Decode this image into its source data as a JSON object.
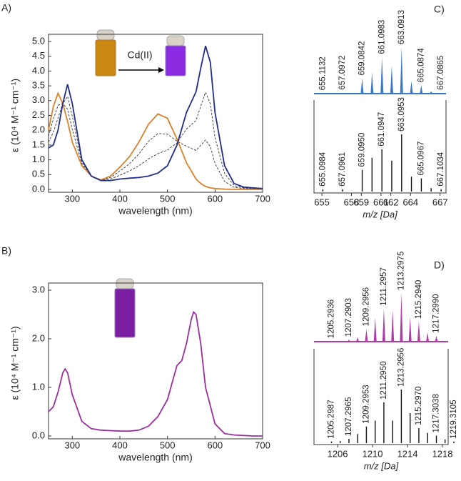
{
  "chart_data": [
    {
      "type": "line",
      "panel_label": "A)",
      "xlabel": "wavelength (nm)",
      "ylabel": "ε (10⁴ M⁻¹ cm⁻¹)",
      "annotation": "Cd(II)",
      "x": [
        250,
        260,
        270,
        280,
        290,
        300,
        320,
        340,
        360,
        380,
        400,
        420,
        440,
        460,
        480,
        500,
        520,
        540,
        560,
        570,
        580,
        590,
        600,
        620,
        640,
        660,
        680,
        700
      ],
      "xlim": [
        250,
        700
      ],
      "xticks": [
        300,
        400,
        500,
        600,
        700
      ],
      "ylim": [
        0,
        5
      ],
      "yticks": [
        {
          "value": 0,
          "label": "0.0"
        },
        {
          "value": 0.5,
          "label": "0.5"
        },
        {
          "value": 1,
          "label": "1.0"
        },
        {
          "value": 1.5,
          "label": "1.5"
        },
        {
          "value": 2,
          "label": "2.0"
        },
        {
          "value": 2.5,
          "label": "2.5"
        },
        {
          "value": 3,
          "label": "3.0"
        },
        {
          "value": 3.5,
          "label": "3.5"
        },
        {
          "value": 4,
          "label": "4.0"
        },
        {
          "value": 4.5,
          "label": "4.5"
        },
        {
          "value": 5,
          "label": "5.0"
        }
      ],
      "series": [
        {
          "color": "#333333",
          "dash": true,
          "values": [
            1.8,
            2.37,
            2.84,
            2.9,
            2.71,
            2.03,
            0.87,
            0.45,
            0.31,
            0.4,
            0.62,
            0.86,
            1.2,
            1.62,
            1.89,
            1.87,
            1.63,
            1.46,
            1.32,
            1.49,
            1.67,
            1.45,
            0.88,
            0.27,
            0.07,
            0.03,
            0.02,
            0.01
          ]
        },
        {
          "color": "#333333",
          "dash": true,
          "values": [
            1.6,
            1.93,
            2.41,
            2.9,
            3.14,
            2.47,
            0.93,
            0.45,
            0.31,
            0.35,
            0.48,
            0.62,
            0.8,
            1.03,
            1.21,
            1.33,
            1.57,
            2.04,
            2.33,
            2.81,
            3.28,
            2.9,
            1.75,
            0.54,
            0.13,
            0.05,
            0.03,
            0.02
          ]
        },
        {
          "color": "#d9822b",
          "dash": false,
          "values": [
            2.0,
            2.8,
            3.25,
            2.9,
            2.3,
            1.6,
            0.8,
            0.45,
            0.32,
            0.45,
            0.75,
            1.1,
            1.6,
            2.2,
            2.55,
            2.4,
            1.7,
            0.9,
            0.35,
            0.2,
            0.1,
            0.05,
            0.03,
            0.01,
            0,
            0,
            0,
            0
          ]
        },
        {
          "color": "#1f2d8a",
          "dash": false,
          "values": [
            1.4,
            1.5,
            2.0,
            2.9,
            3.55,
            2.9,
            1.0,
            0.45,
            0.3,
            0.3,
            0.35,
            0.38,
            0.4,
            0.45,
            0.55,
            0.8,
            1.5,
            2.6,
            3.3,
            4.1,
            4.85,
            4.3,
            2.6,
            0.8,
            0.2,
            0.08,
            0.05,
            0.03
          ]
        }
      ]
    },
    {
      "type": "line",
      "panel_label": "B)",
      "xlabel": "wavelength (nm)",
      "ylabel": "ε (10⁴ M⁻¹ cm⁻¹)",
      "x": [
        250,
        260,
        270,
        280,
        285,
        290,
        300,
        320,
        340,
        360,
        380,
        400,
        420,
        440,
        460,
        480,
        500,
        510,
        520,
        530,
        540,
        550,
        555,
        560,
        570,
        580,
        600,
        620,
        640,
        660,
        680,
        700
      ],
      "xlim": [
        250,
        700
      ],
      "xticks": [
        300,
        400,
        500,
        600,
        700
      ],
      "ylim": [
        0,
        3
      ],
      "yticks": [
        {
          "value": 0,
          "label": "0.0"
        },
        {
          "value": 1,
          "label": "1.0"
        },
        {
          "value": 2,
          "label": "2.0"
        },
        {
          "value": 3,
          "label": "3.0"
        }
      ],
      "series": [
        {
          "color": "#9b2fa0",
          "dash": false,
          "values": [
            0.5,
            0.6,
            0.9,
            1.3,
            1.38,
            1.3,
            0.85,
            0.3,
            0.15,
            0.12,
            0.11,
            0.1,
            0.1,
            0.12,
            0.2,
            0.4,
            0.75,
            1.1,
            1.45,
            1.55,
            1.9,
            2.4,
            2.55,
            2.5,
            1.9,
            1.0,
            0.25,
            0.05,
            0.02,
            0.01,
            0,
            0
          ]
        }
      ]
    },
    {
      "type": "stick",
      "panel_label": "C)",
      "xlabel": "m/z [Da]",
      "xlim": [
        654.2,
        667.6
      ],
      "xticks": [
        655,
        658,
        659,
        661,
        662,
        664,
        667
      ],
      "series": [
        {
          "color": "#3a78c8",
          "x": [
            655.1132,
            656.1,
            657.0972,
            658.1,
            659.0842,
            660.09,
            661.0983,
            662.09,
            663.0913,
            664.09,
            665.0874,
            666.09,
            667.0865
          ],
          "values": [
            1,
            1,
            2,
            1,
            33,
            45,
            79,
            60,
            100,
            27,
            18,
            5,
            2
          ],
          "peak_labels": [
            "655.1132",
            null,
            "657.0972",
            null,
            "659.0842",
            null,
            "661.0983",
            null,
            "663.0913",
            null,
            "665.0874",
            null,
            "667.0865"
          ]
        },
        {
          "color": "#111111",
          "x": [
            655.0984,
            657.0961,
            659.095,
            660.09,
            661.0947,
            662.09,
            663.0953,
            664.09,
            665.0967,
            666.09,
            667.1034
          ],
          "values": [
            4,
            4,
            38,
            59,
            74,
            54,
            100,
            26,
            23,
            6,
            4
          ],
          "peak_labels": [
            "655.0984",
            "657.0961",
            "659.0950",
            null,
            "661.0947",
            null,
            "663.0953",
            null,
            "665.0967",
            null,
            "667.1034"
          ]
        }
      ]
    },
    {
      "type": "stick",
      "panel_label": "D)",
      "xlabel": "m/z [Da]",
      "xlim": [
        1203.3,
        1218.65
      ],
      "xticks": [
        1206,
        1210,
        1214,
        1218
      ],
      "series": [
        {
          "color": "#b03aa8",
          "x": [
            1205.2936,
            1206.29,
            1207.2903,
            1208.29,
            1209.2956,
            1210.3,
            1211.2957,
            1212.3,
            1213.2975,
            1214.3,
            1215.294,
            1216.29,
            1217.299
          ],
          "values": [
            1,
            2,
            4,
            9,
            26,
            49,
            68,
            65,
            100,
            51,
            41,
            19,
            12
          ],
          "peak_labels": [
            "1205.2936",
            null,
            "1207.2903",
            null,
            "1209.2956",
            null,
            "1211.2957",
            null,
            "1213.2975",
            null,
            "1215.2940",
            null,
            "1217.2990"
          ]
        },
        {
          "color": "#111111",
          "x": [
            1205.2987,
            1206.3,
            1207.2965,
            1208.3,
            1209.2953,
            1210.3,
            1211.295,
            1212.3,
            1213.2956,
            1214.3,
            1215.297,
            1216.3,
            1217.3038,
            1218.3,
            1219.3105
          ],
          "values": [
            3,
            4,
            8,
            17,
            31,
            42,
            76,
            42,
            100,
            56,
            28,
            19,
            14,
            7,
            3
          ],
          "peak_labels": [
            "1205.2987",
            null,
            "1207.2965",
            null,
            "1209.2953",
            null,
            "1211.2950",
            null,
            "1213.2956",
            null,
            "1215.2970",
            null,
            "1217.3038",
            null,
            "1219.3105"
          ]
        }
      ]
    }
  ]
}
